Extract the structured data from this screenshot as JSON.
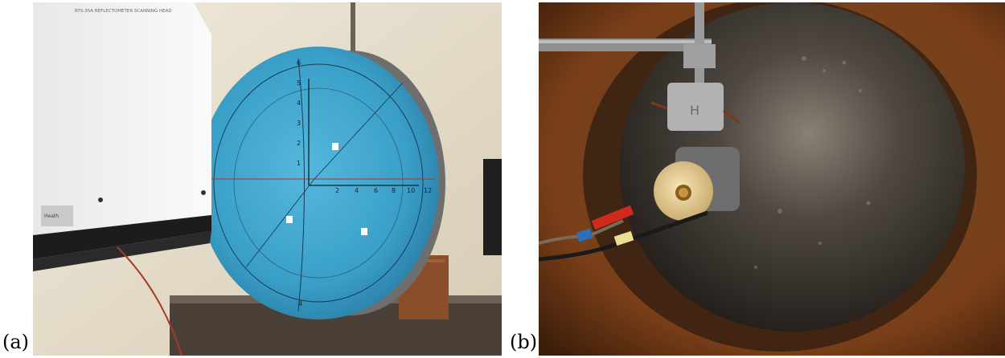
{
  "figure": {
    "panels": [
      {
        "label": "(a)",
        "image_name": "reflectometer-scanning-head-with-blue-bowl"
      },
      {
        "label": "(b)",
        "image_name": "sample-holder-inside-dark-bowl"
      }
    ]
  },
  "panel_a": {
    "instrument_label": "RTS-35A REFLECTOMETER SCANNING HEAD",
    "sticker_text": "Heath",
    "y_axis_ticks": [
      "1",
      "2",
      "3",
      "4",
      "5",
      "6"
    ],
    "x_axis_ticks": [
      "2",
      "4",
      "6",
      "8",
      "10",
      "12"
    ],
    "bottom_mark": "4"
  },
  "panel_b": {
    "holder_mark": "H"
  },
  "colors": {
    "bowl_blue": "#3a9fc7",
    "wall_beige": "#e9e2cf",
    "dark_bowl": "#2b2724",
    "rust": "#8b4a1c"
  }
}
